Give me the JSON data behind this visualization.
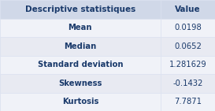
{
  "header": [
    "Descriptive statistiques",
    "Value"
  ],
  "rows": [
    [
      "Mean",
      "0.0198"
    ],
    [
      "Median",
      "0.0652"
    ],
    [
      "Standard deviation",
      "1.281629"
    ],
    [
      "Skewness",
      "-0.1432"
    ],
    [
      "Kurtosis",
      "7.7871"
    ]
  ],
  "header_bg": "#d0d8e8",
  "row_bg_odd": "#f0f2f8",
  "row_bg_even": "#e8eaf2",
  "text_color": "#1a3a6b",
  "header_fontsize": 7.5,
  "row_fontsize": 7.2,
  "fig_bg": "#dce2f0"
}
